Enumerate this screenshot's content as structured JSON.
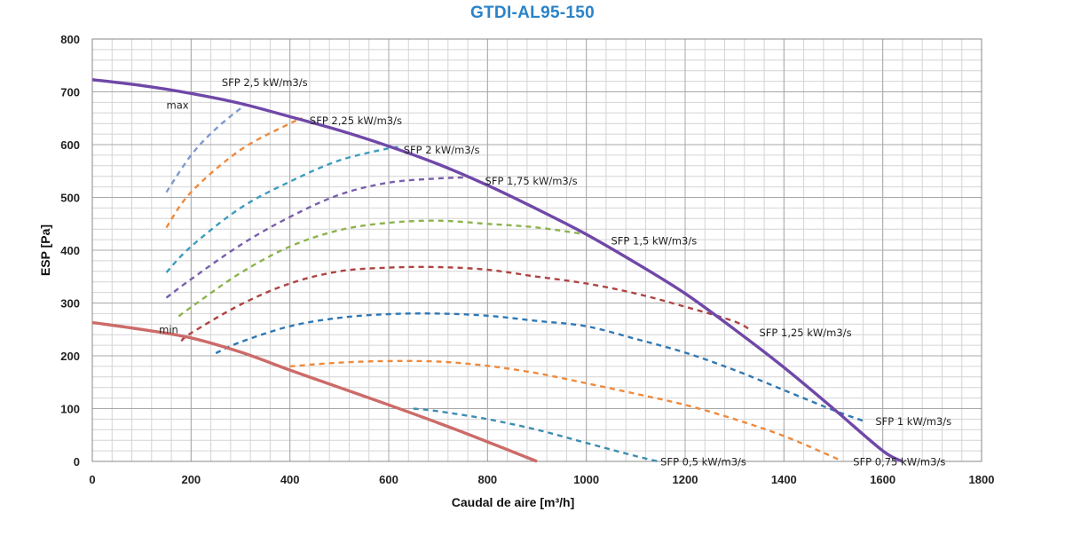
{
  "title": "GTDI-AL95-150",
  "chart_data": {
    "type": "line",
    "title": "GTDI-AL95-150",
    "xlabel": "Caudal de aire  [m³/h]",
    "ylabel": "ESP  [Pa]",
    "xlim": [
      0,
      1800
    ],
    "ylim": [
      0,
      800
    ],
    "xticks": [
      "0",
      "200",
      "400",
      "600",
      "800",
      "1000",
      "1200",
      "1400",
      "1600",
      "1800"
    ],
    "yticks": [
      "0",
      "100",
      "200",
      "300",
      "400",
      "500",
      "600",
      "700",
      "800"
    ],
    "grid": true,
    "series": [
      {
        "name": "max",
        "color": "#7048a8",
        "style": "solid",
        "x": [
          0,
          100,
          200,
          300,
          400,
          500,
          600,
          700,
          800,
          900,
          1000,
          1100,
          1200,
          1300,
          1400,
          1500,
          1600,
          1640
        ],
        "y": [
          723,
          712,
          697,
          678,
          653,
          627,
          597,
          563,
          523,
          478,
          430,
          376,
          318,
          250,
          178,
          100,
          20,
          0
        ]
      },
      {
        "name": "min",
        "color": "#cc6b69",
        "style": "solid",
        "x": [
          0,
          100,
          200,
          300,
          400,
          500,
          600,
          700,
          800,
          900
        ],
        "y": [
          263,
          250,
          234,
          207,
          173,
          140,
          107,
          73,
          37,
          0
        ]
      },
      {
        "name": "SFP 2,5 kW/m3/s",
        "color": "#7f9ad0",
        "style": "dashed",
        "x": [
          150,
          200,
          250,
          310
        ],
        "y": [
          510,
          580,
          630,
          676
        ]
      },
      {
        "name": "SFP 2,25 kW/m3/s",
        "color": "#ee8a3d",
        "style": "dashed",
        "x": [
          150,
          200,
          300,
          400,
          425
        ],
        "y": [
          443,
          510,
          590,
          640,
          650
        ]
      },
      {
        "name": "SFP 2 kW/m3/s",
        "color": "#3d9cbe",
        "style": "dashed",
        "x": [
          150,
          200,
          300,
          400,
          500,
          600,
          620
        ],
        "y": [
          358,
          407,
          480,
          530,
          570,
          593,
          595
        ]
      },
      {
        "name": "SFP 1,75 kW/m3/s",
        "color": "#7a5fac",
        "style": "dashed",
        "x": [
          150,
          200,
          300,
          400,
          500,
          600,
          700,
          765
        ],
        "y": [
          310,
          345,
          410,
          463,
          505,
          528,
          536,
          538
        ]
      },
      {
        "name": "SFP 1,5 kW/m3/s",
        "color": "#8db34f",
        "style": "dashed",
        "x": [
          175,
          200,
          300,
          400,
          500,
          600,
          700,
          800,
          900,
          1000
        ],
        "y": [
          275,
          292,
          357,
          407,
          438,
          452,
          456,
          450,
          443,
          430
        ]
      },
      {
        "name": "SFP 1,25 kW/m3/s",
        "color": "#ae4442",
        "style": "dashed",
        "x": [
          180,
          200,
          300,
          400,
          500,
          600,
          700,
          800,
          900,
          1000,
          1100,
          1200,
          1300,
          1335
        ],
        "y": [
          228,
          243,
          297,
          337,
          360,
          367,
          368,
          363,
          350,
          337,
          318,
          293,
          265,
          247
        ]
      },
      {
        "name": "SFP 1 kW/m3/s",
        "color": "#2f78b4",
        "style": "dashed",
        "x": [
          250,
          300,
          400,
          500,
          600,
          700,
          800,
          900,
          1000,
          1100,
          1200,
          1300,
          1400,
          1500,
          1560
        ],
        "y": [
          205,
          226,
          256,
          272,
          279,
          280,
          276,
          266,
          256,
          232,
          206,
          173,
          135,
          97,
          77
        ]
      },
      {
        "name": "SFP 0,75 kW/m3/s",
        "color": "#ee8a3d",
        "style": "dashed",
        "x": [
          400,
          500,
          600,
          700,
          800,
          900,
          1000,
          1100,
          1200,
          1300,
          1400,
          1500,
          1515
        ],
        "y": [
          180,
          187,
          190,
          189,
          181,
          167,
          148,
          128,
          107,
          80,
          48,
          8,
          0
        ]
      },
      {
        "name": "SFP 0,5 kW/m3/s",
        "color": "#3d8db0",
        "style": "dashed",
        "x": [
          650,
          700,
          800,
          900,
          1000,
          1100,
          1145
        ],
        "y": [
          100,
          95,
          80,
          60,
          35,
          10,
          0
        ]
      }
    ],
    "annotations": [
      {
        "text": "max",
        "x": 150,
        "y": 675
      },
      {
        "text": "min",
        "x": 135,
        "y": 250
      },
      {
        "text": "SFP 2,5 kW/m3/s",
        "x": 262,
        "y": 718
      },
      {
        "text": "SFP 2,25 kW/m3/s",
        "x": 440,
        "y": 645
      },
      {
        "text": "SFP 2 kW/m3/s",
        "x": 630,
        "y": 590
      },
      {
        "text": "SFP 1,75 kW/m3/s",
        "x": 795,
        "y": 531
      },
      {
        "text": "SFP 1,5 kW/m3/s",
        "x": 1050,
        "y": 418
      },
      {
        "text": "SFP 1,25 kW/m3/s",
        "x": 1350,
        "y": 244
      },
      {
        "text": "SFP 1 kW/m3/s",
        "x": 1585,
        "y": 76
      },
      {
        "text": "SFP 0,5 kW/m3/s",
        "x": 1150,
        "y": -1
      },
      {
        "text": "SFP 0,75 kW/m3/s",
        "x": 1540,
        "y": -1
      }
    ]
  }
}
